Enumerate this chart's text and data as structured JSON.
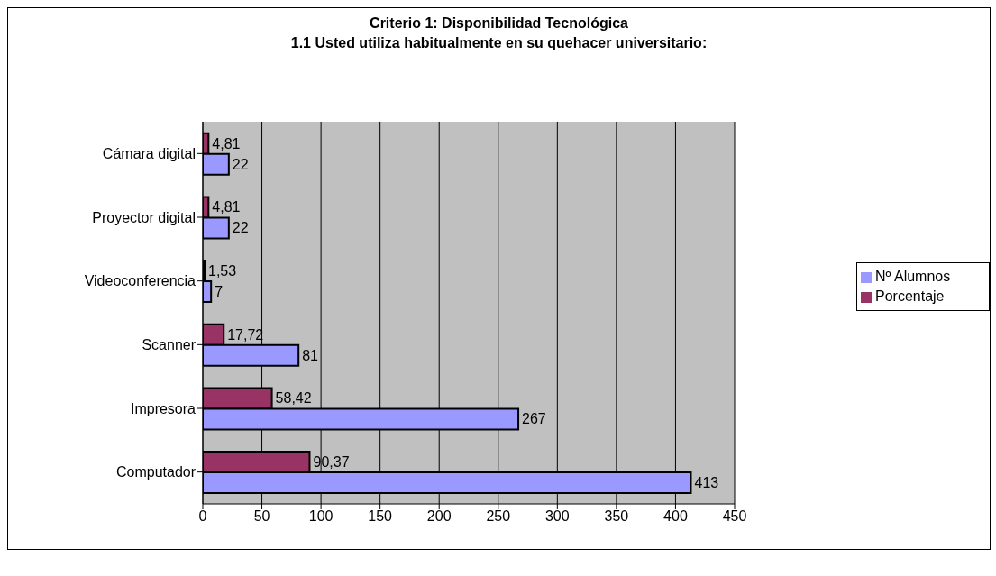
{
  "chart_data": {
    "type": "bar",
    "orientation": "horizontal",
    "title": "Criterio 1: Disponibilidad Tecnológica",
    "subtitle": "1.1  Usted utiliza habitualmente en su quehacer universitario:",
    "categories": [
      "Cámara digital",
      "Proyector digital",
      "Videoconferencia",
      "Scanner",
      "Impresora",
      "Computador"
    ],
    "series": [
      {
        "name": "Porcentaje",
        "color": "#993366",
        "values": [
          4.81,
          4.81,
          1.53,
          17.72,
          58.42,
          90.37
        ],
        "value_labels": [
          "4,81",
          "4,81",
          "1,53",
          "17,72",
          "58,42",
          "90,37"
        ]
      },
      {
        "name": "Nº Alumnos",
        "color": "#9999ff",
        "values": [
          22,
          22,
          7,
          81,
          267,
          413
        ],
        "value_labels": [
          "22",
          "22",
          "7",
          "81",
          "267",
          "413"
        ]
      }
    ],
    "xlim": [
      0,
      450
    ],
    "xticks": [
      0,
      50,
      100,
      150,
      200,
      250,
      300,
      350,
      400,
      450
    ],
    "grid": "x",
    "legend": "right"
  }
}
